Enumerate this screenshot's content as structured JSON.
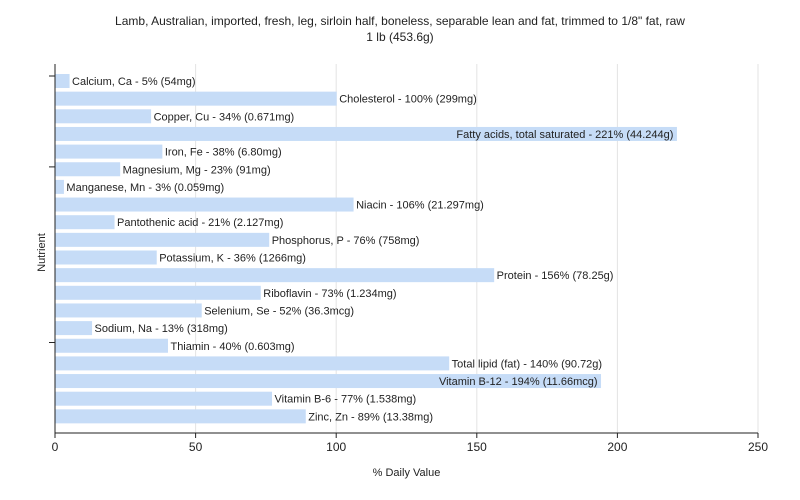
{
  "chart_data": {
    "type": "bar",
    "orientation": "horizontal",
    "title_line1": "Lamb, Australian, imported, fresh, leg, sirloin half, boneless, separable lean and fat, trimmed to 1/8\" fat, raw",
    "title_line2": "1 lb (453.6g)",
    "xlabel": "% Daily Value",
    "ylabel": "Nutrient",
    "xlim": [
      0,
      250
    ],
    "xticks": [
      0,
      50,
      100,
      150,
      200,
      250
    ],
    "grid": true,
    "bar_color": "#c6dcf7",
    "categories": [
      "Calcium, Ca",
      "Cholesterol",
      "Copper, Cu",
      "Fatty acids, total saturated",
      "Iron, Fe",
      "Magnesium, Mg",
      "Manganese, Mn",
      "Niacin",
      "Pantothenic acid",
      "Phosphorus, P",
      "Potassium, K",
      "Protein",
      "Riboflavin",
      "Selenium, Se",
      "Sodium, Na",
      "Thiamin",
      "Total lipid (fat)",
      "Vitamin B-12",
      "Vitamin B-6",
      "Zinc, Zn"
    ],
    "values": [
      5,
      100,
      34,
      221,
      38,
      23,
      3,
      106,
      21,
      76,
      36,
      156,
      73,
      52,
      13,
      40,
      140,
      194,
      77,
      89
    ],
    "labels": [
      "Calcium, Ca - 5% (54mg)",
      "Cholesterol - 100% (299mg)",
      "Copper, Cu - 34% (0.671mg)",
      "Fatty acids, total saturated - 221% (44.244g)",
      "Iron, Fe - 38% (6.80mg)",
      "Magnesium, Mg - 23% (91mg)",
      "Manganese, Mn - 3% (0.059mg)",
      "Niacin - 106% (21.297mg)",
      "Pantothenic acid - 21% (2.127mg)",
      "Phosphorus, P - 76% (758mg)",
      "Potassium, K - 36% (1266mg)",
      "Protein - 156% (78.25g)",
      "Riboflavin - 73% (1.234mg)",
      "Selenium, Se - 52% (36.3mcg)",
      "Sodium, Na - 13% (318mg)",
      "Thiamin - 40% (0.603mg)",
      "Total lipid (fat) - 140% (90.72g)",
      "Vitamin B-12 - 194% (11.66mcg)",
      "Vitamin B-6 - 77% (1.538mg)",
      "Zinc, Zn - 89% (13.38mg)"
    ]
  }
}
